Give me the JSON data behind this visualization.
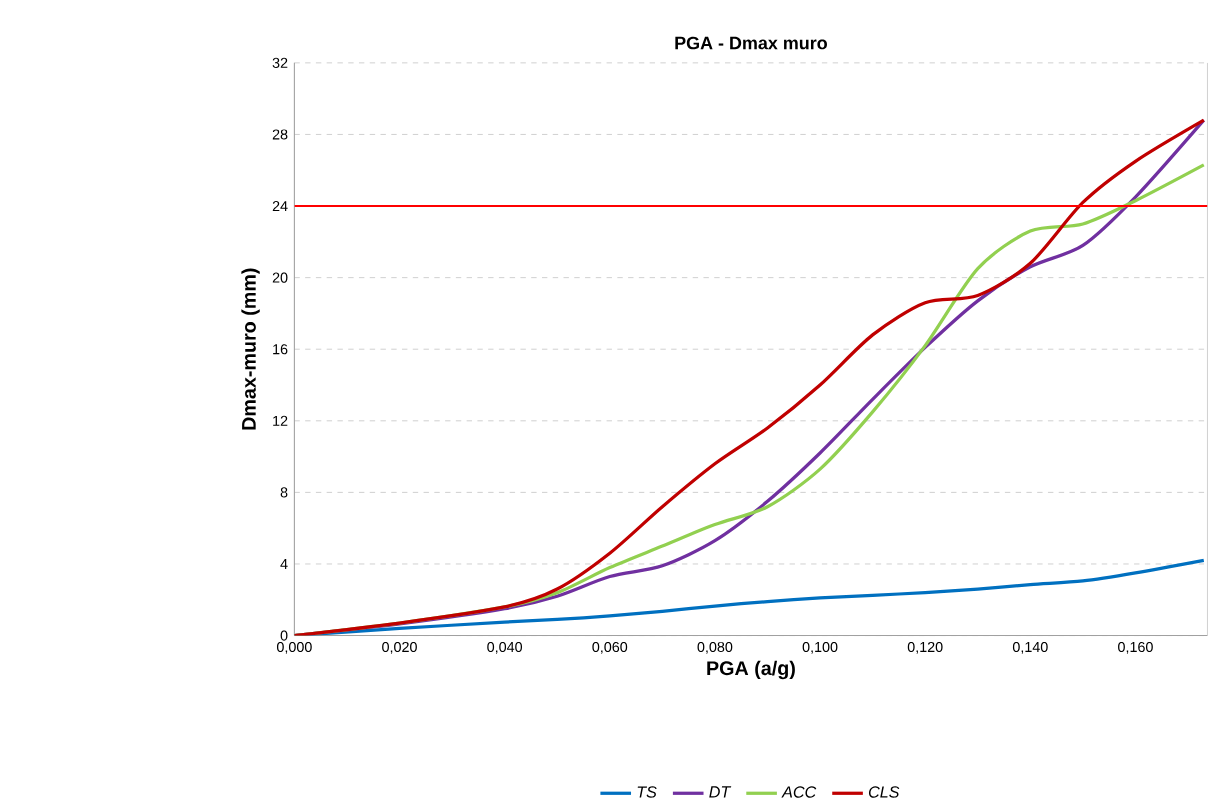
{
  "chart_data": {
    "type": "line",
    "title": "PGA - Dmax muro",
    "xlabel": "PGA (a/g)",
    "ylabel": "Dmax-muro (mm)",
    "x": [
      0,
      0.02,
      0.04,
      0.05,
      0.06,
      0.07,
      0.08,
      0.09,
      0.1,
      0.11,
      0.12,
      0.13,
      0.14,
      0.15,
      0.16,
      0.173
    ],
    "series": [
      {
        "name": "TS",
        "color": "#0070c0",
        "values": [
          0,
          0.4,
          0.75,
          0.9,
          1.1,
          1.35,
          1.65,
          1.9,
          2.1,
          2.25,
          2.4,
          2.6,
          2.85,
          3.05,
          3.5,
          4.2
        ]
      },
      {
        "name": "DT",
        "color": "#7030a0",
        "values": [
          0,
          0.65,
          1.5,
          2.2,
          3.3,
          3.9,
          5.3,
          7.5,
          10.2,
          13.2,
          16.1,
          18.7,
          20.6,
          21.8,
          24.5,
          28.8
        ]
      },
      {
        "name": "ACC",
        "color": "#92d050",
        "values": [
          0,
          0.7,
          1.6,
          2.4,
          3.8,
          5.0,
          6.2,
          7.2,
          9.3,
          12.5,
          16.2,
          20.5,
          22.6,
          23.0,
          24.3,
          26.3
        ]
      },
      {
        "name": "CLS",
        "color": "#c00000",
        "values": [
          0,
          0.7,
          1.6,
          2.6,
          4.6,
          7.2,
          9.6,
          11.6,
          14.0,
          16.8,
          18.6,
          19.0,
          20.8,
          24.2,
          26.5,
          28.8
        ]
      }
    ],
    "xlim": [
      0,
      0.1737
    ],
    "ylim": [
      0,
      32
    ],
    "xticks": [
      {
        "value": 0,
        "label": "0,000"
      },
      {
        "value": 0.02,
        "label": "0,020"
      },
      {
        "value": 0.04,
        "label": "0,040"
      },
      {
        "value": 0.06,
        "label": "0,060"
      },
      {
        "value": 0.08,
        "label": "0,080"
      },
      {
        "value": 0.1,
        "label": "0,100"
      },
      {
        "value": 0.12,
        "label": "0,120"
      },
      {
        "value": 0.14,
        "label": "0,140"
      },
      {
        "value": 0.16,
        "label": "0,160"
      }
    ],
    "yticks": [
      0,
      4,
      8,
      12,
      16,
      20,
      24,
      28,
      32
    ],
    "ref_lines": [
      {
        "axis": "y",
        "value": 24,
        "color": "#ff0000"
      }
    ],
    "grid": "y",
    "legend": "bottom",
    "marker": "none",
    "line_style": "solid"
  }
}
